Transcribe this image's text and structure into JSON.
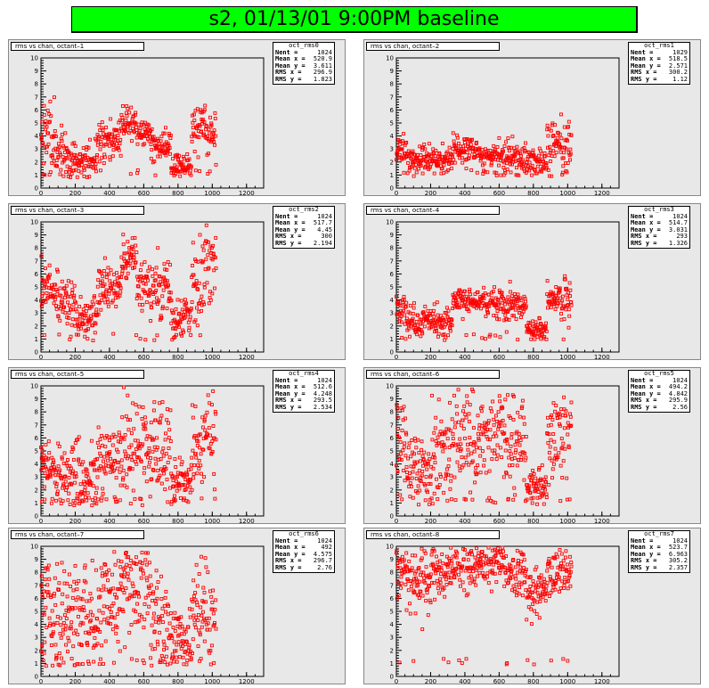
{
  "page": {
    "title": "s2, 01/13/01 9:00PM baseline",
    "title_bg": "#00ff00",
    "pad_bg": "#e8e8e8",
    "marker_color": "#ff0000"
  },
  "stat_labels": {
    "nent": "Nent =",
    "meanx": "Mean x =",
    "meany": "Mean y =",
    "rmsx": "RMS x =",
    "rmsy": "RMS y ="
  },
  "chart_data": [
    {
      "type": "scatter",
      "title": "rms vs chan, octant–1",
      "stats_name": "oct_rms0",
      "nent": "1024",
      "meanx": "520.9",
      "meany": "3.611",
      "rmsx": "296.9",
      "rmsy": "1.823",
      "xlim": [
        0,
        1300
      ],
      "ylim": [
        0,
        10
      ],
      "xticks": [
        "0",
        "200",
        "400",
        "600",
        "800",
        "1000",
        "1200"
      ],
      "yticks": [
        "0",
        "1",
        "2",
        "3",
        "4",
        "5",
        "6",
        "7",
        "8",
        "9",
        "10"
      ],
      "seed": 11,
      "segments": [
        [
          0,
          60,
          4.5,
          1.8
        ],
        [
          60,
          160,
          3.0,
          1.4
        ],
        [
          160,
          330,
          2.2,
          0.8
        ],
        [
          330,
          470,
          3.6,
          1.0
        ],
        [
          470,
          560,
          5.2,
          0.8
        ],
        [
          560,
          640,
          4.2,
          0.6
        ],
        [
          640,
          760,
          3.2,
          0.7
        ],
        [
          760,
          880,
          1.8,
          0.6
        ],
        [
          880,
          960,
          4.8,
          1.1
        ],
        [
          960,
          1024,
          4.2,
          1.2
        ]
      ]
    },
    {
      "type": "scatter",
      "title": "rms vs chan, octant–2",
      "stats_name": "oct_rms1",
      "nent": "1029",
      "meanx": "518.5",
      "meany": "2.571",
      "rmsx": "300.2",
      "rmsy": "1.12",
      "xlim": [
        0,
        1300
      ],
      "ylim": [
        0,
        10
      ],
      "xticks": [
        "0",
        "200",
        "400",
        "600",
        "800",
        "1000",
        "1200"
      ],
      "yticks": [
        "0",
        "1",
        "2",
        "3",
        "4",
        "5",
        "6",
        "7",
        "8",
        "9",
        "10"
      ],
      "seed": 23,
      "segments": [
        [
          0,
          60,
          2.8,
          0.7
        ],
        [
          60,
          330,
          2.2,
          0.6
        ],
        [
          330,
          470,
          3.0,
          0.7
        ],
        [
          470,
          560,
          2.4,
          0.5
        ],
        [
          560,
          760,
          2.4,
          0.8
        ],
        [
          760,
          880,
          2.0,
          0.6
        ],
        [
          880,
          960,
          3.6,
          1.0
        ],
        [
          960,
          1024,
          3.5,
          1.5
        ]
      ]
    },
    {
      "type": "scatter",
      "title": "rms vs chan, octant–3",
      "stats_name": "oct_rms2",
      "nent": "1024",
      "meanx": "517.7",
      "meany": "4.45",
      "rmsx": "300",
      "rmsy": "2.194",
      "xlim": [
        0,
        1300
      ],
      "ylim": [
        0,
        10
      ],
      "xticks": [
        "0",
        "200",
        "400",
        "600",
        "800",
        "1000",
        "1200"
      ],
      "yticks": [
        "0",
        "1",
        "2",
        "3",
        "4",
        "5",
        "6",
        "7",
        "8",
        "9",
        "10"
      ],
      "seed": 37,
      "segments": [
        [
          0,
          60,
          5.0,
          1.2
        ],
        [
          60,
          200,
          3.8,
          1.3
        ],
        [
          200,
          330,
          2.6,
          1.0
        ],
        [
          330,
          470,
          4.8,
          1.0
        ],
        [
          470,
          560,
          7.2,
          1.1
        ],
        [
          560,
          640,
          5.0,
          1.2
        ],
        [
          640,
          760,
          4.8,
          1.6
        ],
        [
          760,
          880,
          2.6,
          1.0
        ],
        [
          880,
          960,
          5.5,
          2.0
        ],
        [
          960,
          1024,
          7.0,
          1.8
        ]
      ]
    },
    {
      "type": "scatter",
      "title": "rms vs chan, octant–4",
      "stats_name": "oct_rms3",
      "nent": "1024",
      "meanx": "514.7",
      "meany": "3.031",
      "rmsx": "293",
      "rmsy": "1.326",
      "xlim": [
        0,
        1300
      ],
      "ylim": [
        0,
        10
      ],
      "xticks": [
        "0",
        "200",
        "400",
        "600",
        "800",
        "1000",
        "1200"
      ],
      "yticks": [
        "0",
        "1",
        "2",
        "3",
        "4",
        "5",
        "6",
        "7",
        "8",
        "9",
        "10"
      ],
      "seed": 41,
      "segments": [
        [
          0,
          60,
          3.2,
          0.8
        ],
        [
          60,
          330,
          2.4,
          0.7
        ],
        [
          330,
          560,
          3.9,
          0.6
        ],
        [
          560,
          760,
          3.6,
          0.8
        ],
        [
          760,
          880,
          1.8,
          0.5
        ],
        [
          880,
          960,
          4.2,
          0.7
        ],
        [
          960,
          1024,
          3.8,
          1.6
        ]
      ]
    },
    {
      "type": "scatter",
      "title": "rms vs chan, octant–5",
      "stats_name": "oct_rms4",
      "nent": "1024",
      "meanx": "512.6",
      "meany": "4.248",
      "rmsx": "293.5",
      "rmsy": "2.534",
      "xlim": [
        0,
        1300
      ],
      "ylim": [
        0,
        10
      ],
      "xticks": [
        "0",
        "200",
        "400",
        "600",
        "800",
        "1000",
        "1200"
      ],
      "yticks": [
        "0",
        "1",
        "2",
        "3",
        "4",
        "5",
        "6",
        "7",
        "8",
        "9",
        "10"
      ],
      "seed": 53,
      "segments": [
        [
          0,
          60,
          3.8,
          1.3
        ],
        [
          60,
          200,
          3.0,
          1.8
        ],
        [
          200,
          330,
          2.6,
          2.0
        ],
        [
          330,
          470,
          4.0,
          2.0
        ],
        [
          470,
          640,
          5.5,
          2.3
        ],
        [
          640,
          760,
          5.5,
          2.4
        ],
        [
          760,
          880,
          2.6,
          1.2
        ],
        [
          880,
          960,
          5.5,
          2.5
        ],
        [
          960,
          1024,
          6.5,
          2.8
        ]
      ]
    },
    {
      "type": "scatter",
      "title": "rms vs chan, octant–6",
      "stats_name": "oct_rms5",
      "nent": "1024",
      "meanx": "494.2",
      "meany": "4.842",
      "rmsx": "295.9",
      "rmsy": "2.56",
      "xlim": [
        0,
        1300
      ],
      "ylim": [
        0,
        10
      ],
      "xticks": [
        "0",
        "200",
        "400",
        "600",
        "800",
        "1000",
        "1200"
      ],
      "yticks": [
        "0",
        "1",
        "2",
        "3",
        "4",
        "5",
        "6",
        "7",
        "8",
        "9",
        "10"
      ],
      "seed": 67,
      "segments": [
        [
          0,
          60,
          5.5,
          2.0
        ],
        [
          60,
          200,
          3.8,
          1.5
        ],
        [
          200,
          330,
          4.5,
          2.3
        ],
        [
          330,
          470,
          5.5,
          2.3
        ],
        [
          470,
          640,
          6.2,
          2.0
        ],
        [
          640,
          760,
          5.0,
          2.3
        ],
        [
          760,
          880,
          2.2,
          0.8
        ],
        [
          880,
          960,
          6.2,
          2.5
        ],
        [
          960,
          1024,
          6.5,
          2.5
        ]
      ]
    },
    {
      "type": "scatter",
      "title": "rms vs chan, octant–7",
      "stats_name": "oct_rms6",
      "nent": "1024",
      "meanx": "492",
      "meany": "4.575",
      "rmsx": "296.7",
      "rmsy": "2.76",
      "xlim": [
        0,
        1300
      ],
      "ylim": [
        0,
        10
      ],
      "xticks": [
        "0",
        "200",
        "400",
        "600",
        "800",
        "1000",
        "1200"
      ],
      "yticks": [
        "0",
        "1",
        "2",
        "3",
        "4",
        "5",
        "6",
        "7",
        "8",
        "9",
        "10"
      ],
      "seed": 79,
      "segments": [
        [
          0,
          60,
          5.0,
          2.5
        ],
        [
          60,
          200,
          4.5,
          2.5
        ],
        [
          200,
          330,
          4.5,
          2.6
        ],
        [
          330,
          470,
          5.5,
          2.7
        ],
        [
          470,
          640,
          6.5,
          2.6
        ],
        [
          640,
          760,
          4.5,
          2.8
        ],
        [
          760,
          880,
          2.6,
          1.5
        ],
        [
          880,
          960,
          4.8,
          2.6
        ],
        [
          960,
          1024,
          5.0,
          2.8
        ]
      ]
    },
    {
      "type": "scatter",
      "title": "rms vs chan, octant–8",
      "stats_name": "oct_rms7",
      "nent": "1024",
      "meanx": "523.7",
      "meany": "6.963",
      "rmsx": "305.2",
      "rmsy": "2.357",
      "xlim": [
        0,
        1300
      ],
      "ylim": [
        0,
        10
      ],
      "xticks": [
        "0",
        "200",
        "400",
        "600",
        "800",
        "1000",
        "1200"
      ],
      "yticks": [
        "0",
        "1",
        "2",
        "3",
        "4",
        "5",
        "6",
        "7",
        "8",
        "9",
        "10"
      ],
      "seed": 97,
      "segments": [
        [
          0,
          60,
          8.0,
          1.3
        ],
        [
          60,
          200,
          7.4,
          1.6
        ],
        [
          200,
          330,
          8.2,
          1.4
        ],
        [
          330,
          470,
          8.5,
          1.2
        ],
        [
          470,
          640,
          8.8,
          1.1
        ],
        [
          640,
          760,
          8.0,
          1.2
        ],
        [
          760,
          880,
          6.5,
          1.2
        ],
        [
          880,
          960,
          8.0,
          1.2
        ],
        [
          960,
          1024,
          8.0,
          1.3
        ]
      ]
    }
  ]
}
